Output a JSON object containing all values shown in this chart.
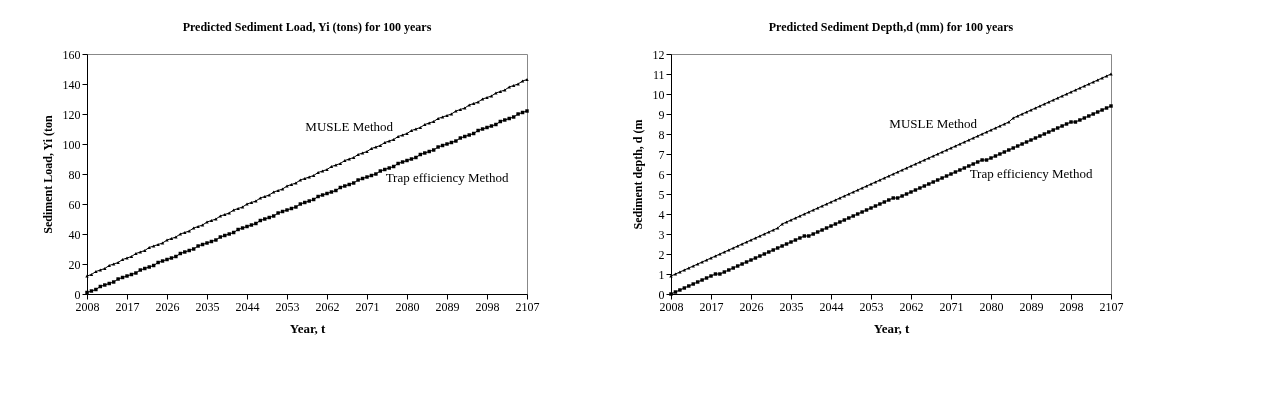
{
  "chart_data": [
    {
      "type": "line",
      "title": "Predicted Sediment Load, Yi (tons) for 100 years",
      "xlabel": "Year, t",
      "ylabel": "Sediment Load, Yi (ton",
      "xlim": [
        2008,
        2107
      ],
      "xticks": [
        2008,
        2017,
        2026,
        2035,
        2044,
        2053,
        2062,
        2071,
        2080,
        2089,
        2098,
        2107
      ],
      "ylim": [
        0,
        160
      ],
      "yticks": [
        0,
        20,
        40,
        60,
        80,
        100,
        120,
        140,
        160
      ],
      "grid": false,
      "x": [
        2008,
        2009,
        2010,
        2011,
        2012,
        2013,
        2014,
        2015,
        2016,
        2017,
        2018,
        2019,
        2020,
        2021,
        2022,
        2023,
        2024,
        2025,
        2026,
        2027,
        2028,
        2029,
        2030,
        2031,
        2032,
        2033,
        2034,
        2035,
        2036,
        2037,
        2038,
        2039,
        2040,
        2041,
        2042,
        2043,
        2044,
        2045,
        2046,
        2047,
        2048,
        2049,
        2050,
        2051,
        2052,
        2053,
        2054,
        2055,
        2056,
        2057,
        2058,
        2059,
        2060,
        2061,
        2062,
        2063,
        2064,
        2065,
        2066,
        2067,
        2068,
        2069,
        2070,
        2071,
        2072,
        2073,
        2074,
        2075,
        2076,
        2077,
        2078,
        2079,
        2080,
        2081,
        2082,
        2083,
        2084,
        2085,
        2086,
        2087,
        2088,
        2089,
        2090,
        2091,
        2092,
        2093,
        2094,
        2095,
        2096,
        2097,
        2098,
        2099,
        2100,
        2101,
        2102,
        2103,
        2104,
        2105,
        2106,
        2107
      ],
      "series": [
        {
          "name": "MUSLE Method",
          "color": "#000000",
          "marker": "triangle",
          "values": [
            12,
            13,
            15,
            16,
            17,
            19,
            20,
            21,
            23,
            24,
            25,
            27,
            28,
            29,
            31,
            32,
            33,
            34,
            36,
            37,
            38,
            40,
            41,
            42,
            44,
            45,
            46,
            48,
            49,
            50,
            52,
            53,
            54,
            56,
            57,
            58,
            60,
            61,
            62,
            64,
            65,
            66,
            68,
            69,
            70,
            72,
            73,
            74,
            76,
            77,
            78,
            79,
            81,
            82,
            83,
            85,
            86,
            87,
            89,
            90,
            91,
            93,
            94,
            95,
            97,
            98,
            99,
            101,
            102,
            103,
            105,
            106,
            107,
            109,
            110,
            111,
            113,
            114,
            115,
            117,
            118,
            119,
            120,
            122,
            123,
            124,
            126,
            127,
            128,
            130,
            131,
            132,
            134,
            135,
            136,
            138,
            139,
            140,
            142,
            143
          ]
        },
        {
          "name": "Trap efficiency Method",
          "color": "#000000",
          "marker": "square",
          "values": [
            1,
            2,
            3,
            5,
            6,
            7,
            8,
            10,
            11,
            12,
            13,
            14,
            16,
            17,
            18,
            19,
            21,
            22,
            23,
            24,
            25,
            27,
            28,
            29,
            30,
            32,
            33,
            34,
            35,
            36,
            38,
            39,
            40,
            41,
            43,
            44,
            45,
            46,
            47,
            49,
            50,
            51,
            52,
            54,
            55,
            56,
            57,
            58,
            60,
            61,
            62,
            63,
            65,
            66,
            67,
            68,
            69,
            71,
            72,
            73,
            74,
            76,
            77,
            78,
            79,
            80,
            82,
            83,
            84,
            85,
            87,
            88,
            89,
            90,
            91,
            93,
            94,
            95,
            96,
            98,
            99,
            100,
            101,
            102,
            104,
            105,
            106,
            107,
            109,
            110,
            111,
            112,
            113,
            115,
            116,
            117,
            118,
            120,
            121,
            122
          ]
        }
      ]
    },
    {
      "type": "line",
      "title": "Predicted Sediment Depth,d (mm) for 100 years",
      "xlabel": "Year, t",
      "ylabel": "Sediment depth, d (m",
      "xlim": [
        2008,
        2107
      ],
      "xticks": [
        2008,
        2017,
        2026,
        2035,
        2044,
        2053,
        2062,
        2071,
        2080,
        2089,
        2098,
        2107
      ],
      "ylim": [
        0,
        12
      ],
      "yticks": [
        0,
        1,
        2,
        3,
        4,
        5,
        6,
        7,
        8,
        9,
        10,
        11,
        12
      ],
      "grid": false,
      "x": [
        2008,
        2009,
        2010,
        2011,
        2012,
        2013,
        2014,
        2015,
        2016,
        2017,
        2018,
        2019,
        2020,
        2021,
        2022,
        2023,
        2024,
        2025,
        2026,
        2027,
        2028,
        2029,
        2030,
        2031,
        2032,
        2033,
        2034,
        2035,
        2036,
        2037,
        2038,
        2039,
        2040,
        2041,
        2042,
        2043,
        2044,
        2045,
        2046,
        2047,
        2048,
        2049,
        2050,
        2051,
        2052,
        2053,
        2054,
        2055,
        2056,
        2057,
        2058,
        2059,
        2060,
        2061,
        2062,
        2063,
        2064,
        2065,
        2066,
        2067,
        2068,
        2069,
        2070,
        2071,
        2072,
        2073,
        2074,
        2075,
        2076,
        2077,
        2078,
        2079,
        2080,
        2081,
        2082,
        2083,
        2084,
        2085,
        2086,
        2087,
        2088,
        2089,
        2090,
        2091,
        2092,
        2093,
        2094,
        2095,
        2096,
        2097,
        2098,
        2099,
        2100,
        2101,
        2102,
        2103,
        2104,
        2105,
        2106,
        2107
      ],
      "series": [
        {
          "name": "MUSLE Method",
          "color": "#000000",
          "marker": "triangle",
          "values": [
            0.9,
            1.0,
            1.1,
            1.2,
            1.3,
            1.4,
            1.5,
            1.6,
            1.7,
            1.8,
            1.9,
            2.0,
            2.1,
            2.2,
            2.3,
            2.4,
            2.5,
            2.6,
            2.7,
            2.8,
            2.9,
            3.0,
            3.1,
            3.2,
            3.3,
            3.5,
            3.6,
            3.7,
            3.8,
            3.9,
            4.0,
            4.1,
            4.2,
            4.3,
            4.4,
            4.5,
            4.6,
            4.7,
            4.8,
            4.9,
            5.0,
            5.1,
            5.2,
            5.3,
            5.4,
            5.5,
            5.6,
            5.7,
            5.8,
            5.9,
            6.0,
            6.1,
            6.2,
            6.3,
            6.4,
            6.5,
            6.6,
            6.7,
            6.8,
            6.9,
            7.0,
            7.1,
            7.2,
            7.3,
            7.4,
            7.5,
            7.6,
            7.7,
            7.8,
            7.9,
            8.0,
            8.1,
            8.2,
            8.3,
            8.4,
            8.5,
            8.6,
            8.8,
            8.9,
            9.0,
            9.1,
            9.2,
            9.3,
            9.4,
            9.5,
            9.6,
            9.7,
            9.8,
            9.9,
            10.0,
            10.1,
            10.2,
            10.3,
            10.4,
            10.5,
            10.6,
            10.7,
            10.8,
            10.9,
            11.0
          ]
        },
        {
          "name": "Trap efficiency Method",
          "color": "#000000",
          "marker": "square",
          "values": [
            0.0,
            0.1,
            0.2,
            0.3,
            0.4,
            0.5,
            0.6,
            0.7,
            0.8,
            0.9,
            1.0,
            1.0,
            1.1,
            1.2,
            1.3,
            1.4,
            1.5,
            1.6,
            1.7,
            1.8,
            1.9,
            2.0,
            2.1,
            2.2,
            2.3,
            2.4,
            2.5,
            2.6,
            2.7,
            2.8,
            2.9,
            2.9,
            3.0,
            3.1,
            3.2,
            3.3,
            3.4,
            3.5,
            3.6,
            3.7,
            3.8,
            3.9,
            4.0,
            4.1,
            4.2,
            4.3,
            4.4,
            4.5,
            4.6,
            4.7,
            4.8,
            4.8,
            4.9,
            5.0,
            5.1,
            5.2,
            5.3,
            5.4,
            5.5,
            5.6,
            5.7,
            5.8,
            5.9,
            6.0,
            6.1,
            6.2,
            6.3,
            6.4,
            6.5,
            6.6,
            6.7,
            6.7,
            6.8,
            6.9,
            7.0,
            7.1,
            7.2,
            7.3,
            7.4,
            7.5,
            7.6,
            7.7,
            7.8,
            7.9,
            8.0,
            8.1,
            8.2,
            8.3,
            8.4,
            8.5,
            8.6,
            8.6,
            8.7,
            8.8,
            8.9,
            9.0,
            9.1,
            9.2,
            9.3,
            9.4
          ]
        }
      ]
    }
  ]
}
